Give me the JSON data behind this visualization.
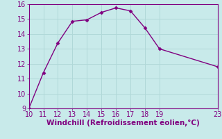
{
  "x": [
    10,
    11,
    12,
    13,
    14,
    15,
    16,
    17,
    18,
    19,
    23
  ],
  "y": [
    9.0,
    11.4,
    13.4,
    14.85,
    14.95,
    15.45,
    15.75,
    15.55,
    14.4,
    13.0,
    11.8
  ],
  "xlim": [
    10,
    23
  ],
  "ylim": [
    9,
    16
  ],
  "xticks": [
    10,
    11,
    12,
    13,
    14,
    15,
    16,
    17,
    18,
    19,
    23
  ],
  "yticks": [
    9,
    10,
    11,
    12,
    13,
    14,
    15,
    16
  ],
  "xlabel": "Windchill (Refroidissement éolien,°C)",
  "line_color": "#800080",
  "marker": "D",
  "bg_color": "#c8eaea",
  "grid_color": "#b0d8d8",
  "tick_color": "#800080",
  "label_color": "#800080",
  "marker_size": 2.5,
  "line_width": 1.0,
  "xlabel_fontsize": 7.5,
  "tick_fontsize": 7
}
